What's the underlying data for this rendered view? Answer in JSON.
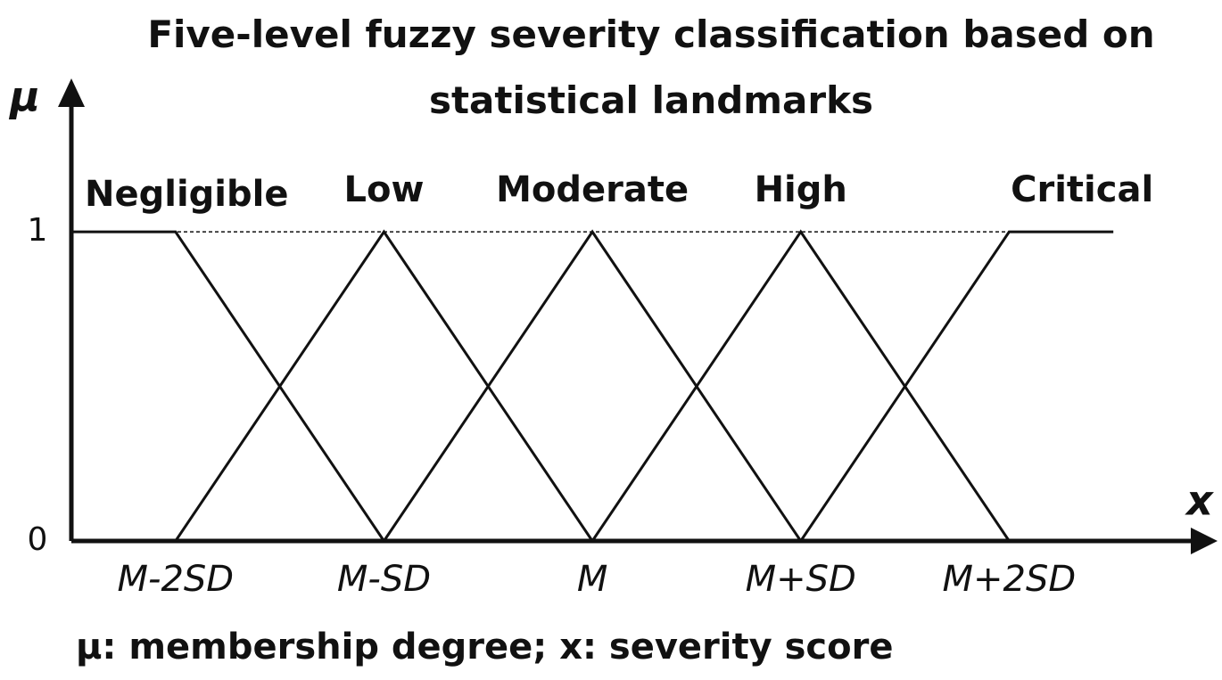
{
  "chart_data": {
    "type": "line",
    "title": "Five-level fuzzy severity classification based on statistical landmarks",
    "y_label": "μ",
    "x_label": "x",
    "note": "μ: membership degree; x: severity score",
    "x": [
      -2.5,
      -2,
      -1,
      0,
      1,
      2,
      2.5
    ],
    "xlim": [
      -2.5,
      3.0
    ],
    "xticks": [
      {
        "value": -2,
        "label": "M-2SD"
      },
      {
        "value": -1,
        "label": "M-SD"
      },
      {
        "value": 0,
        "label": "M"
      },
      {
        "value": 1,
        "label": "M+SD"
      },
      {
        "value": 2,
        "label": "M+2SD"
      }
    ],
    "ylim": [
      0,
      1.45
    ],
    "yticks": [
      0,
      1
    ],
    "grid": true,
    "series": [
      {
        "name": "Negligible",
        "color": "#111111",
        "values": [
          1,
          1,
          0,
          null,
          null,
          null,
          null
        ]
      },
      {
        "name": "Low",
        "color": "#111111",
        "values": [
          null,
          0,
          1,
          0,
          null,
          null,
          null
        ]
      },
      {
        "name": "Moderate",
        "color": "#111111",
        "values": [
          null,
          null,
          0,
          1,
          0,
          null,
          null
        ]
      },
      {
        "name": "High",
        "color": "#111111",
        "values": [
          null,
          null,
          null,
          0,
          1,
          0,
          null
        ]
      },
      {
        "name": "Critical",
        "color": "#111111",
        "values": [
          null,
          null,
          null,
          null,
          0,
          1,
          1
        ]
      }
    ]
  }
}
